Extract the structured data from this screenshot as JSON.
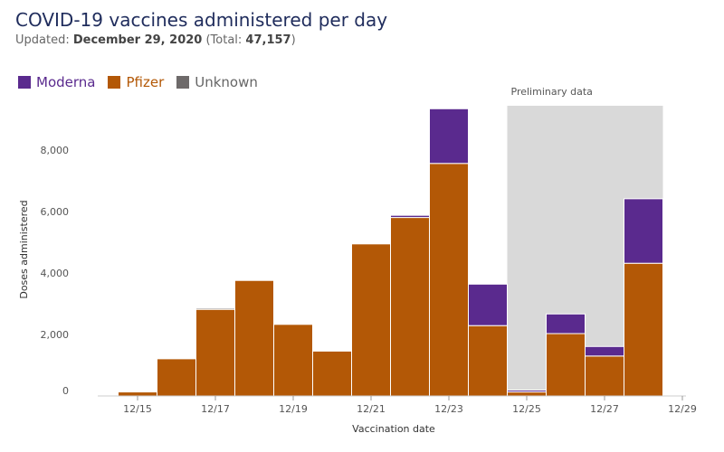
{
  "title": "COVID-19 vaccines administered per day",
  "subtitle": {
    "updated_prefix": "Updated: ",
    "updated_date": "December 29, 2020",
    "total_prefix": " (Total: ",
    "total_value": "47,157",
    "total_suffix": ")"
  },
  "legend": [
    {
      "name": "Moderna",
      "color": "#5a2a8e",
      "text_color": "#5a2a8e"
    },
    {
      "name": "Pfizer",
      "color": "#b35806",
      "text_color": "#b35806"
    },
    {
      "name": "Unknown",
      "color": "#6e6a6a",
      "text_color": "#666666"
    }
  ],
  "chart_data": {
    "type": "bar",
    "stacked": true,
    "categories": [
      "12/15",
      "12/16",
      "12/17",
      "12/18",
      "12/19",
      "12/20",
      "12/21",
      "12/22",
      "12/23",
      "12/24",
      "12/25",
      "12/26",
      "12/27",
      "12/28"
    ],
    "series": [
      {
        "name": "Pfizer",
        "color": "#b35806",
        "values": [
          130,
          1210,
          2820,
          3760,
          2330,
          1460,
          4950,
          5810,
          7570,
          2290,
          130,
          2030,
          1300,
          4320
        ]
      },
      {
        "name": "Moderna",
        "color": "#5a2a8e",
        "values": [
          0,
          0,
          0,
          0,
          0,
          0,
          0,
          80,
          1780,
          1350,
          60,
          640,
          310,
          2100
        ]
      },
      {
        "name": "Unknown",
        "color": "#6e6a6a",
        "values": [
          0,
          0,
          40,
          0,
          0,
          0,
          0,
          20,
          0,
          0,
          0,
          0,
          0,
          0
        ]
      }
    ],
    "xlabel": "Vaccination date",
    "ylabel": "Doses administered",
    "x_ticks": [
      "12/15",
      "12/17",
      "12/19",
      "12/21",
      "12/23",
      "12/25",
      "12/27",
      "12/29"
    ],
    "y_ticks": [
      0,
      2000,
      4000,
      6000,
      8000
    ],
    "y_tick_labels": [
      "0",
      "2,000",
      "4,000",
      "6,000",
      "8,000"
    ],
    "ylim": [
      0,
      9800
    ],
    "preliminary": {
      "label": "Preliminary data",
      "start": "12/25",
      "end": "12/29",
      "color": "#d9d9d9"
    },
    "grid": false
  }
}
